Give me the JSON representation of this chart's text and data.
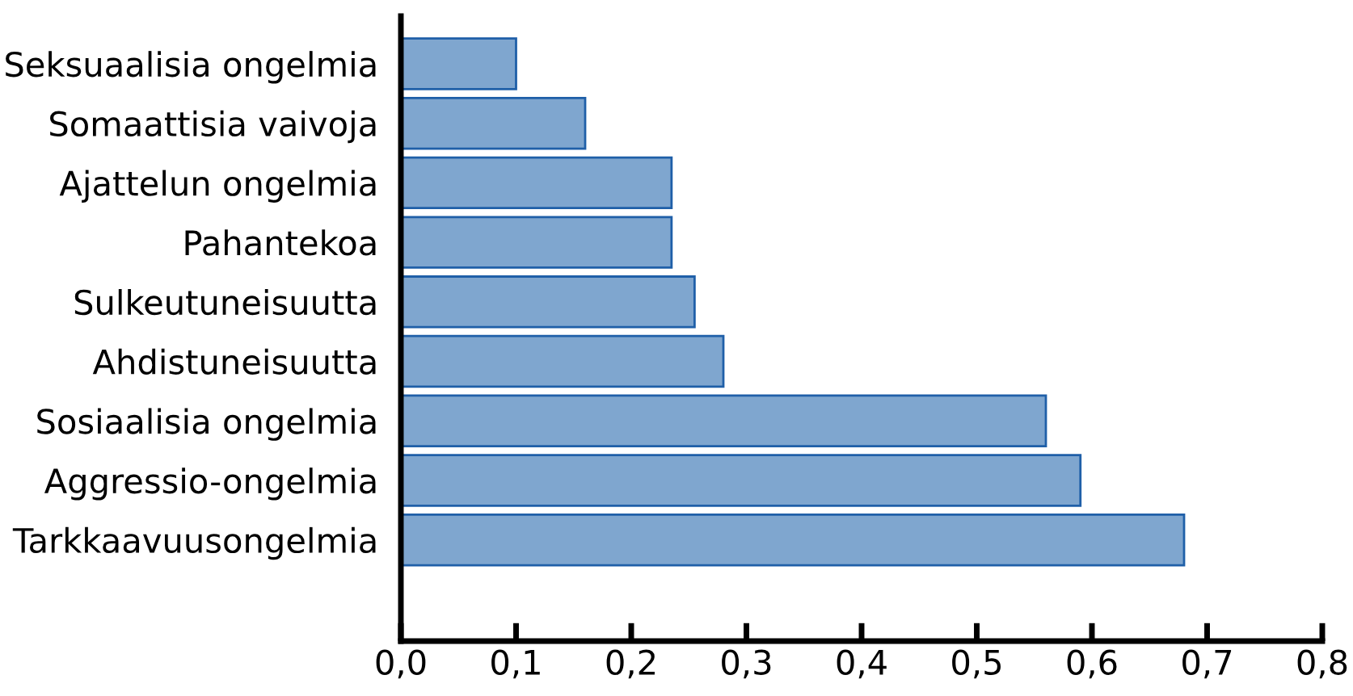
{
  "chart_data": {
    "type": "bar",
    "orientation": "horizontal",
    "categories": [
      "Seksuaalisia ongelmia",
      "Somaattisia vaivoja",
      "Ajattelun ongelmia",
      "Pahantekoa",
      "Sulkeutuneisuutta",
      "Ahdistuneisuutta",
      "Sosiaalisia ongelmia",
      "Aggressio-ongelmia",
      "Tarkkaavuusongelmia"
    ],
    "values": [
      0.1,
      0.16,
      0.235,
      0.235,
      0.255,
      0.28,
      0.56,
      0.59,
      0.68
    ],
    "color": "#7fa6cf",
    "xlim": [
      0,
      0.8
    ],
    "xticks": [
      {
        "value": 0,
        "label": "0,0"
      },
      {
        "value": 0.1,
        "label": "0,1"
      },
      {
        "value": 0.2,
        "label": "0,2"
      },
      {
        "value": 0.3,
        "label": "0,3"
      },
      {
        "value": 0.4,
        "label": "0,4"
      },
      {
        "value": 0.5,
        "label": "0,5"
      },
      {
        "value": 0.6,
        "label": "0,6"
      },
      {
        "value": 0.7,
        "label": "0,7"
      },
      {
        "value": 0.8,
        "label": "0,8"
      }
    ],
    "grid": false,
    "legend": false
  }
}
